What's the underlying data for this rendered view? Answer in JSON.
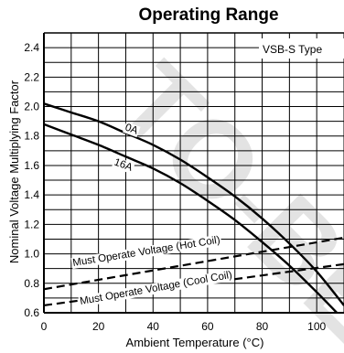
{
  "chart_data": {
    "type": "line",
    "title": "Operating Range",
    "xlabel": "Ambient Temperature (°C)",
    "ylabel": "Nominal Voltage Multiplying Factor",
    "note": "VSB-S Type",
    "watermark": "TO-BE",
    "xlim": [
      0,
      110
    ],
    "ylim": [
      0.6,
      2.5
    ],
    "xticks": [
      0,
      20,
      40,
      60,
      80,
      100
    ],
    "xtick_labels": [
      "0",
      "20",
      "40",
      "60",
      "80",
      "100"
    ],
    "yticks": [
      0.6,
      0.8,
      1.0,
      1.2,
      1.4,
      1.6,
      1.8,
      2.0,
      2.2,
      2.4
    ],
    "ytick_labels": [
      "0.6",
      "0.8",
      "1.0",
      "1.2",
      "1.4",
      "1.6",
      "1.8",
      "2.0",
      "2.2",
      "2.4"
    ],
    "grid": true,
    "series": [
      {
        "name": "0A",
        "style": "solid",
        "x": [
          0,
          10,
          20,
          30,
          40,
          50,
          60,
          70,
          80,
          90,
          100,
          110
        ],
        "y": [
          2.02,
          1.96,
          1.9,
          1.82,
          1.74,
          1.64,
          1.52,
          1.39,
          1.24,
          1.07,
          0.88,
          0.65
        ]
      },
      {
        "name": "16A",
        "style": "solid",
        "x": [
          0,
          10,
          20,
          30,
          40,
          50,
          60,
          70,
          80,
          90,
          100,
          110
        ],
        "y": [
          1.88,
          1.81,
          1.74,
          1.66,
          1.58,
          1.48,
          1.36,
          1.23,
          1.08,
          0.92,
          0.74,
          0.55
        ]
      },
      {
        "name": "Must Operate Voltage (Hot Coil)",
        "style": "dashed",
        "x": [
          0,
          110
        ],
        "y": [
          0.76,
          1.11
        ]
      },
      {
        "name": "Must Operate Voltage (Cool Coil)",
        "style": "dashed",
        "x": [
          0,
          110
        ],
        "y": [
          0.65,
          0.93
        ]
      }
    ]
  }
}
